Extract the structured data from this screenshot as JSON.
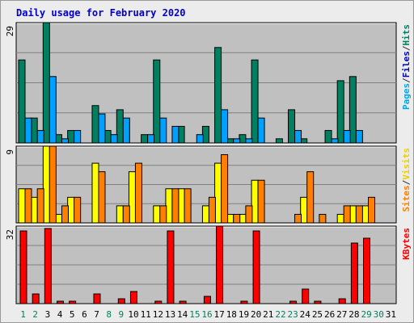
{
  "chart_data": {
    "type": "bar",
    "title": "Daily usage for February 2020",
    "categories": [
      "1",
      "2",
      "3",
      "4",
      "5",
      "6",
      "7",
      "8",
      "9",
      "10",
      "11",
      "12",
      "13",
      "14",
      "15",
      "16",
      "17",
      "18",
      "19",
      "20",
      "21",
      "22",
      "23",
      "24",
      "25",
      "26",
      "27",
      "28",
      "29",
      "30",
      "31"
    ],
    "weekend_days": [
      "1",
      "2",
      "8",
      "9",
      "15",
      "16",
      "22",
      "23",
      "29",
      "30"
    ],
    "panels": [
      {
        "name": "hits-files-pages",
        "ymax_label": "29",
        "ylim": [
          0,
          29
        ],
        "side_labels": [
          {
            "text": "Pages",
            "color": "#00a8e8"
          },
          {
            "text": "/",
            "color": "#333333"
          },
          {
            "text": "Files",
            "color": "#0000bb"
          },
          {
            "text": "/",
            "color": "#333333"
          },
          {
            "text": "Hits",
            "color": "#008060"
          }
        ],
        "series": [
          {
            "key": "Hits",
            "color": "#008060",
            "values": [
              20,
              6,
              29,
              2,
              3,
              0,
              9,
              3,
              8,
              0,
              2,
              20,
              0,
              4,
              0,
              4,
              23,
              1,
              2,
              20,
              0,
              1,
              8,
              1,
              0,
              3,
              15,
              16,
              0,
              0,
              0
            ]
          },
          {
            "key": "Files",
            "color": "#00a0ff",
            "values": [
              6,
              3,
              16,
              1,
              3,
              0,
              7,
              2,
              6,
              0,
              2,
              6,
              4,
              0,
              2,
              0,
              8,
              1,
              1,
              6,
              0,
              0,
              3,
              0,
              0,
              1,
              3,
              3,
              0,
              0,
              0
            ]
          },
          {
            "key": "Pages",
            "color": "#00b0f0",
            "values": [
              0,
              0,
              0,
              0,
              0,
              0,
              0,
              0,
              0,
              0,
              0,
              0,
              0,
              0,
              0,
              0,
              0,
              0,
              0,
              0,
              0,
              0,
              0,
              0,
              0,
              0,
              0,
              0,
              0,
              0,
              0
            ]
          }
        ]
      },
      {
        "name": "visits-sites",
        "ymax_label": "9",
        "ylim": [
          0,
          9
        ],
        "side_labels": [
          {
            "text": "Sites",
            "color": "#ff8000"
          },
          {
            "text": "/",
            "color": "#333333"
          },
          {
            "text": "Visits",
            "color": "#e8d000"
          }
        ],
        "series": [
          {
            "key": "Visits",
            "color": "#ffff00",
            "values": [
              4,
              3,
              9,
              1,
              3,
              0,
              7,
              0,
              2,
              6,
              0,
              2,
              4,
              4,
              0,
              2,
              7,
              1,
              1,
              5,
              0,
              0,
              0,
              3,
              0,
              0,
              1,
              2,
              2,
              0,
              0
            ]
          },
          {
            "key": "Sites",
            "color": "#ff8000",
            "values": [
              4,
              4,
              9,
              2,
              3,
              0,
              6,
              0,
              2,
              7,
              0,
              2,
              4,
              4,
              0,
              3,
              8,
              1,
              2,
              5,
              0,
              0,
              1,
              6,
              1,
              0,
              2,
              2,
              3,
              0,
              0
            ]
          }
        ]
      },
      {
        "name": "kbytes",
        "ymax_label": "32",
        "ylim": [
          0,
          32
        ],
        "side_labels": [
          {
            "text": "KBytes",
            "color": "#ff0000"
          }
        ],
        "series": [
          {
            "key": "KBytes",
            "color": "#ff0000",
            "values": [
              30,
              4,
              31,
              1,
              1,
              0,
              4,
              0,
              2,
              5,
              0,
              1,
              30,
              1,
              0,
              3,
              32,
              0,
              1,
              30,
              0,
              0,
              1,
              6,
              1,
              0,
              2,
              25,
              27,
              0,
              0
            ]
          }
        ]
      }
    ]
  }
}
